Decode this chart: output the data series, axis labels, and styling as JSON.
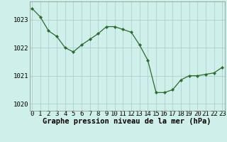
{
  "x": [
    0,
    1,
    2,
    3,
    4,
    5,
    6,
    7,
    8,
    9,
    10,
    11,
    12,
    13,
    14,
    15,
    16,
    17,
    18,
    19,
    20,
    21,
    22,
    23
  ],
  "y": [
    1023.4,
    1023.1,
    1022.6,
    1022.4,
    1022.0,
    1021.85,
    1022.1,
    1022.3,
    1022.5,
    1022.75,
    1022.75,
    1022.65,
    1022.55,
    1022.1,
    1021.55,
    1020.4,
    1020.4,
    1020.5,
    1020.85,
    1021.0,
    1021.0,
    1021.05,
    1021.1,
    1021.3
  ],
  "line_color": "#2d6a2d",
  "marker": "D",
  "marker_size": 2.2,
  "background_color": "#cff0ea",
  "grid_color": "#aecfcc",
  "xlabel": "Graphe pression niveau de la mer (hPa)",
  "xlabel_fontsize": 7.5,
  "tick_fontsize": 6.5,
  "ylim": [
    1019.75,
    1023.65
  ],
  "yticks": [
    1020,
    1021,
    1022,
    1023
  ],
  "xticks": [
    0,
    1,
    2,
    3,
    4,
    5,
    6,
    7,
    8,
    9,
    10,
    11,
    12,
    13,
    14,
    15,
    16,
    17,
    18,
    19,
    20,
    21,
    22,
    23
  ],
  "border_color": "#888888"
}
